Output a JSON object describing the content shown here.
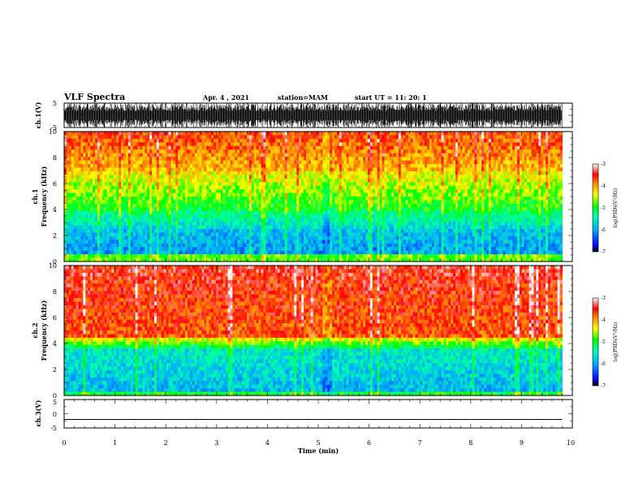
{
  "header": {
    "title": "VLF Spectra",
    "date": "Apr. 4 , 2021",
    "station": "station=MAM",
    "start": "start UT = 11: 20: 1"
  },
  "chart_data": [
    {
      "type": "line",
      "panel": "ch1-waveform",
      "ylabel": "ch.1(V)",
      "ylim": [
        -5,
        5
      ],
      "yticks": [
        "5",
        "-5"
      ],
      "xlim": [
        0,
        10
      ]
    },
    {
      "type": "heatmap",
      "panel": "ch1-spectrogram",
      "ylabel_line1": "ch.1",
      "ylabel_line2": "Frequency (kHz)",
      "ylim": [
        0,
        10
      ],
      "yticks": [
        "0",
        "2",
        "4",
        "6",
        "8",
        "10"
      ],
      "xlim": [
        0,
        10
      ],
      "data_end_min": 9.8,
      "colorbar": {
        "label": "log(PSD)(V²/Hz)",
        "range": [
          -7,
          -3
        ],
        "ticks": [
          "-3",
          "-4",
          "-5",
          "-6",
          "-7"
        ]
      }
    },
    {
      "type": "heatmap",
      "panel": "ch2-spectrogram",
      "ylabel_line1": "ch.2",
      "ylabel_line2": "Frequency (kHz)",
      "ylim": [
        0,
        10
      ],
      "yticks": [
        "0",
        "2",
        "4",
        "6",
        "8",
        "10"
      ],
      "xlim": [
        0,
        10
      ],
      "data_end_min": 9.8,
      "colorbar": {
        "label": "log(PSD)(V²/Hz)",
        "range": [
          -7,
          -3
        ],
        "ticks": [
          "-3",
          "-4",
          "-5",
          "-6",
          "-7"
        ]
      }
    },
    {
      "type": "line",
      "panel": "ch3-waveform",
      "ylabel": "ch.3(V)",
      "ylim": [
        -5,
        5
      ],
      "yticks": [
        "5",
        "0",
        "-5"
      ],
      "x": [
        0,
        9.8
      ],
      "y": [
        -2,
        -2
      ],
      "xlim": [
        0,
        10
      ],
      "xlabel": "Time (min)",
      "xticks": [
        "0",
        "1",
        "2",
        "3",
        "4",
        "5",
        "6",
        "7",
        "8",
        "9",
        "10"
      ]
    }
  ]
}
